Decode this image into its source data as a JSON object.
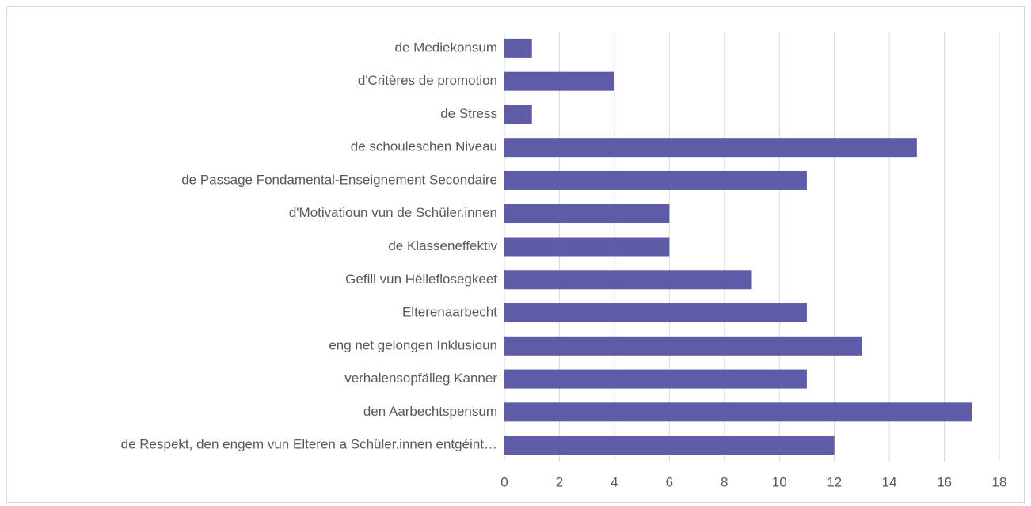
{
  "chart_data": {
    "type": "hbar",
    "categories": [
      "de Mediekonsum",
      "d'Critères de promotion",
      "de Stress",
      "de schouleschen Niveau",
      "de Passage Fondamental-Enseignement Secondaire",
      "d'Motivatioun vun de Schüler.innen",
      "de Klasseneffektiv",
      "Gefill vun Hëlleflosegkeet",
      "Elterenaarbecht",
      "eng net gelongen Inklusioun",
      "verhalensopfälleg Kanner",
      "den Aarbechtspensum",
      "de Respekt, den engem vun Elteren a Schüler.innen entgéint…"
    ],
    "values": [
      1,
      4,
      1,
      15,
      11,
      6,
      6,
      9,
      11,
      13,
      11,
      17,
      12
    ],
    "color": "#5f5ca7",
    "xlim": [
      0,
      18
    ],
    "xticks": [
      0,
      2,
      4,
      6,
      8,
      10,
      12,
      14,
      16,
      18
    ],
    "grid": true
  }
}
